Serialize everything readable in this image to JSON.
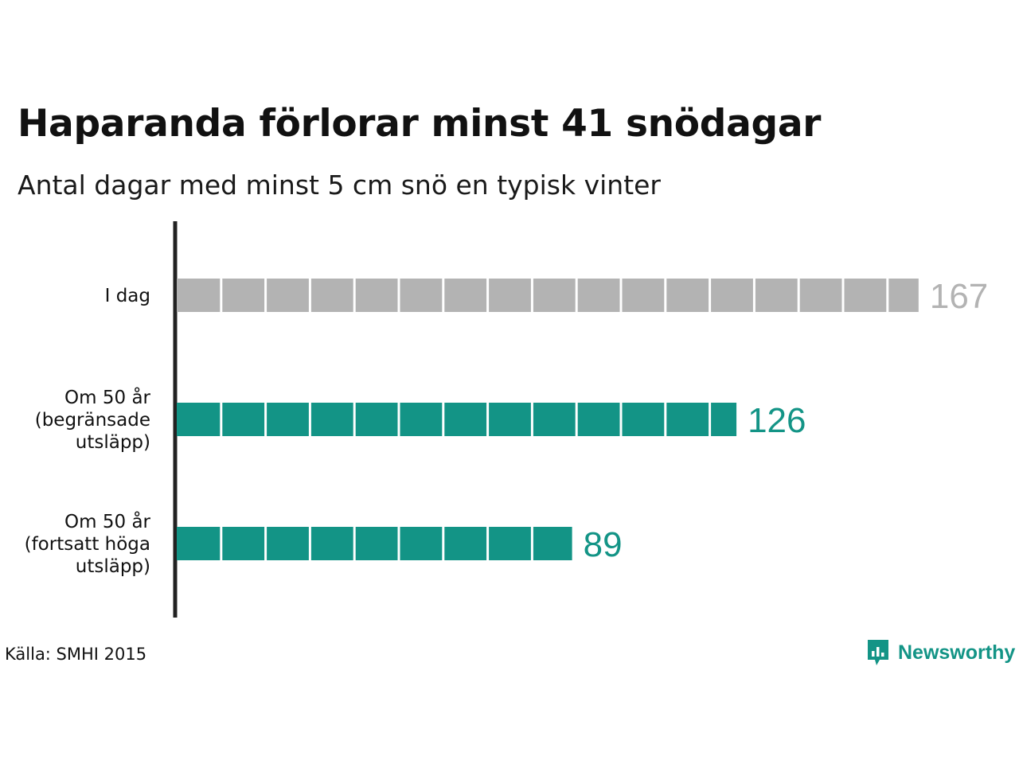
{
  "title": "Haparanda förlorar minst 41 snödagar",
  "subtitle": "Antal dagar med minst 5 cm snö en typisk vinter",
  "source": "Källa: SMHI 2015",
  "logo": {
    "text": "Newsworthy",
    "icon": "newsworthy-logo-icon",
    "color": "#139486"
  },
  "chart_data": {
    "type": "bar",
    "orientation": "horizontal",
    "unit_per_block": 10,
    "categories": [
      [
        "I dag"
      ],
      [
        "Om 50 år",
        "(begränsade",
        "utsläpp)"
      ],
      [
        "Om 50 år",
        "(fortsatt höga",
        "utsläpp)"
      ]
    ],
    "values": [
      167,
      126,
      89
    ],
    "value_labels": [
      "167",
      "126",
      "89"
    ],
    "colors": [
      "#b3b3b3",
      "#139486",
      "#139486"
    ],
    "label_colors": [
      "#b3b3b3",
      "#139486",
      "#139486"
    ],
    "axis_color": "#222222",
    "xlim": [
      0,
      167
    ]
  }
}
